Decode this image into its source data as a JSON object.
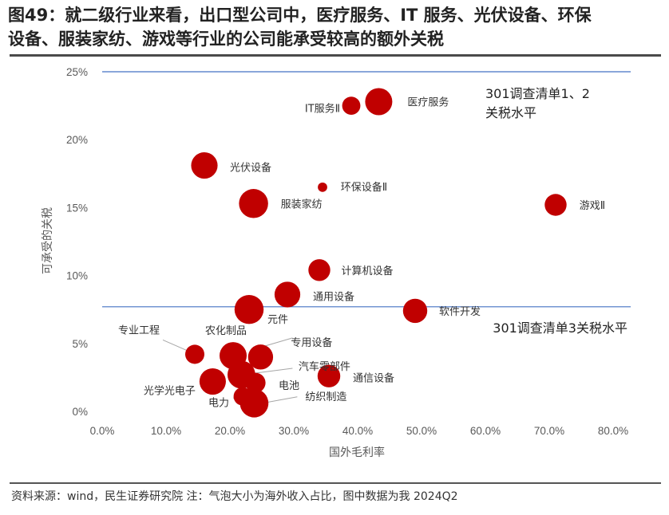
{
  "header": {
    "title": "图49：就二级行业来看，出口型公司中，医疗服务、IT 服务、光伏设备、环保\n设备、服装家纺、游戏等行业的公司能承受较高的额外关税"
  },
  "footer": {
    "source": "资料来源：wind，民生证券研究院 注：气泡大小为海外收入占比，图中数据为我 2024Q2"
  },
  "chart_data": {
    "type": "scatter",
    "title": "就二级行业来看，出口型公司中，医疗服务、IT 服务、光伏设备、环保设备、服装家纺、游戏等行业的公司能承受较高的额外关税",
    "xlabel": "国外毛利率",
    "ylabel": "可承受的关税",
    "xlim": [
      0,
      80
    ],
    "ylim": [
      0,
      25
    ],
    "x_ticks": [
      "0.0%",
      "10.0%",
      "20.0%",
      "30.0%",
      "40.0%",
      "50.0%",
      "60.0%",
      "70.0%",
      "80.0%"
    ],
    "y_ticks": [
      "0%",
      "5%",
      "10%",
      "15%",
      "20%",
      "25%"
    ],
    "bubble_size_meaning": "海外收入占比",
    "color": "#c00000",
    "reference_lines": [
      {
        "y": 25,
        "label": "301调查清单1、2\n关税水平",
        "color": "#4472c4"
      },
      {
        "y": 7.7,
        "label": "301调查清单3关税水平",
        "color": "#4472c4"
      }
    ],
    "points": [
      {
        "name": "医疗服务",
        "x": 43.3,
        "y": 22.8,
        "size": 1.0
      },
      {
        "name": "IT服务Ⅱ",
        "x": 39.0,
        "y": 22.5,
        "size": 0.45
      },
      {
        "name": "光伏设备",
        "x": 16.0,
        "y": 18.1,
        "size": 0.95
      },
      {
        "name": "环保设备Ⅱ",
        "x": 34.5,
        "y": 16.5,
        "size": 0.12
      },
      {
        "name": "服装家纺",
        "x": 23.7,
        "y": 15.3,
        "size": 1.15
      },
      {
        "name": "游戏Ⅱ",
        "x": 71.0,
        "y": 15.2,
        "size": 0.65
      },
      {
        "name": "计算机设备",
        "x": 34.0,
        "y": 10.4,
        "size": 0.65
      },
      {
        "name": "通用设备",
        "x": 29.0,
        "y": 8.6,
        "size": 0.9
      },
      {
        "name": "元件",
        "x": 23.0,
        "y": 7.5,
        "size": 1.15
      },
      {
        "name": "软件开发",
        "x": 49.0,
        "y": 7.4,
        "size": 0.8
      },
      {
        "name": "专业工程",
        "x": 14.5,
        "y": 4.2,
        "size": 0.5
      },
      {
        "name": "农化制品",
        "x": 20.5,
        "y": 4.1,
        "size": 1.0
      },
      {
        "name": "专用设备",
        "x": 24.8,
        "y": 4.0,
        "size": 0.85
      },
      {
        "name": "汽车零部件",
        "x": 21.8,
        "y": 2.7,
        "size": 1.05
      },
      {
        "name": "通信设备",
        "x": 35.5,
        "y": 2.6,
        "size": 0.7
      },
      {
        "name": "电池",
        "x": 24.0,
        "y": 2.1,
        "size": 0.55
      },
      {
        "name": "光学光电子",
        "x": 17.3,
        "y": 2.2,
        "size": 0.95
      },
      {
        "name": "电力",
        "x": 22.0,
        "y": 1.1,
        "size": 0.45
      },
      {
        "name": "纺织制造",
        "x": 23.8,
        "y": 0.6,
        "size": 1.1
      }
    ]
  }
}
